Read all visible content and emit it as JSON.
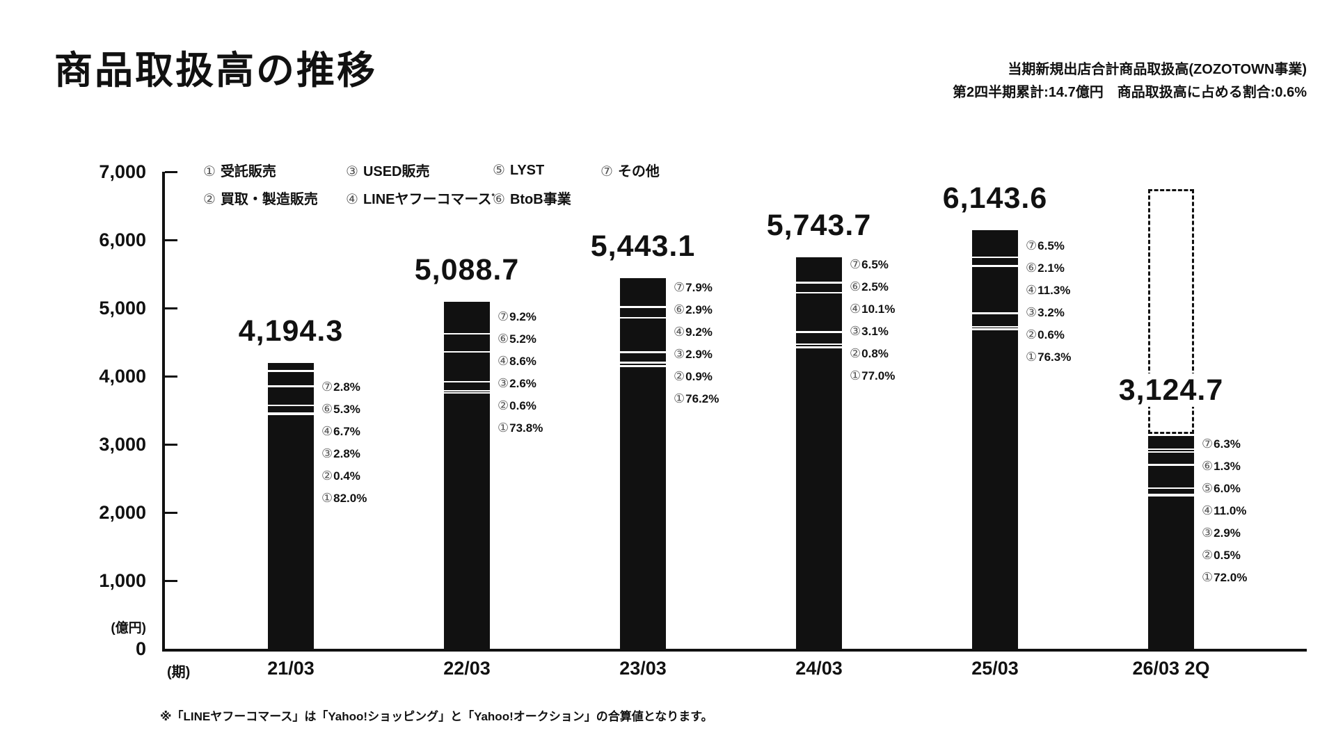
{
  "header": {
    "title": "商品取扱高の推移",
    "note_line1": "当期新規出店合計商品取扱高(ZOZOTOWN事業)",
    "note_line2": "第2四半期累計:14.7億円　商品取扱高に占める割合:0.6%"
  },
  "footnote": "※「LINEヤフーコマース」は「Yahoo!ショッピング」と「Yahoo!オークション」の合算値となります。",
  "chart_data": {
    "type": "bar",
    "stacked": true,
    "title": "商品取扱高の推移",
    "unit_y": "(億円)",
    "unit_x": "(期)",
    "ylim": [
      0,
      7000
    ],
    "grid": false,
    "legend_position": "top-left-inside",
    "bar_color": "#111111",
    "y_ticks": [
      {
        "label": "7,000",
        "value": 7000
      },
      {
        "label": "6,000",
        "value": 6000
      },
      {
        "label": "5,000",
        "value": 5000
      },
      {
        "label": "4,000",
        "value": 4000
      },
      {
        "label": "3,000",
        "value": 3000
      },
      {
        "label": "2,000",
        "value": 2000
      },
      {
        "label": "1,000",
        "value": 1000
      },
      {
        "label": "0",
        "value": 0
      }
    ],
    "legend": [
      {
        "num": "①",
        "label": "受託販売"
      },
      {
        "num": "②",
        "label": "買取・製造販売"
      },
      {
        "num": "③",
        "label": "USED販売"
      },
      {
        "num": "④",
        "label": "LINEヤフーコマース",
        "mark": "*"
      },
      {
        "num": "⑤",
        "label": "LYST"
      },
      {
        "num": "⑥",
        "label": "BtoB事業"
      },
      {
        "num": "⑦",
        "label": "その他"
      }
    ],
    "categories": [
      "21/03",
      "22/03",
      "23/03",
      "24/03",
      "25/03",
      "26/03 2Q"
    ],
    "bars": [
      {
        "category": "21/03",
        "total": "4,194.3",
        "total_value": 4194.3,
        "segments": [
          {
            "num": "①",
            "pct": "82.0"
          },
          {
            "num": "②",
            "pct": "0.4"
          },
          {
            "num": "③",
            "pct": "2.8"
          },
          {
            "num": "④",
            "pct": "6.7"
          },
          {
            "num": "⑥",
            "pct": "5.3"
          },
          {
            "num": "⑦",
            "pct": "2.8"
          }
        ]
      },
      {
        "category": "22/03",
        "total": "5,088.7",
        "total_value": 5088.7,
        "segments": [
          {
            "num": "①",
            "pct": "73.8"
          },
          {
            "num": "②",
            "pct": "0.6"
          },
          {
            "num": "③",
            "pct": "2.6"
          },
          {
            "num": "④",
            "pct": "8.6"
          },
          {
            "num": "⑥",
            "pct": "5.2"
          },
          {
            "num": "⑦",
            "pct": "9.2"
          }
        ]
      },
      {
        "category": "23/03",
        "total": "5,443.1",
        "total_value": 5443.1,
        "segments": [
          {
            "num": "①",
            "pct": "76.2"
          },
          {
            "num": "②",
            "pct": "0.9"
          },
          {
            "num": "③",
            "pct": "2.9"
          },
          {
            "num": "④",
            "pct": "9.2"
          },
          {
            "num": "⑥",
            "pct": "2.9"
          },
          {
            "num": "⑦",
            "pct": "7.9"
          }
        ]
      },
      {
        "category": "24/03",
        "total": "5,743.7",
        "total_value": 5743.7,
        "segments": [
          {
            "num": "①",
            "pct": "77.0"
          },
          {
            "num": "②",
            "pct": "0.8"
          },
          {
            "num": "③",
            "pct": "3.1"
          },
          {
            "num": "④",
            "pct": "10.1"
          },
          {
            "num": "⑥",
            "pct": "2.5"
          },
          {
            "num": "⑦",
            "pct": "6.5"
          }
        ]
      },
      {
        "category": "25/03",
        "total": "6,143.6",
        "total_value": 6143.6,
        "segments": [
          {
            "num": "①",
            "pct": "76.3"
          },
          {
            "num": "②",
            "pct": "0.6"
          },
          {
            "num": "③",
            "pct": "3.2"
          },
          {
            "num": "④",
            "pct": "11.3"
          },
          {
            "num": "⑥",
            "pct": "2.1"
          },
          {
            "num": "⑦",
            "pct": "6.5"
          }
        ]
      },
      {
        "category": "26/03 2Q",
        "total": "3,124.7",
        "total_value": 3124.7,
        "segments": [
          {
            "num": "①",
            "pct": "72.0"
          },
          {
            "num": "②",
            "pct": "0.5"
          },
          {
            "num": "③",
            "pct": "2.9"
          },
          {
            "num": "④",
            "pct": "11.0"
          },
          {
            "num": "⑤",
            "pct": "6.0"
          },
          {
            "num": "⑥",
            "pct": "1.3"
          },
          {
            "num": "⑦",
            "pct": "6.3"
          }
        ],
        "dashed_projection": {
          "top_value_estimate": 6750
        }
      }
    ]
  }
}
